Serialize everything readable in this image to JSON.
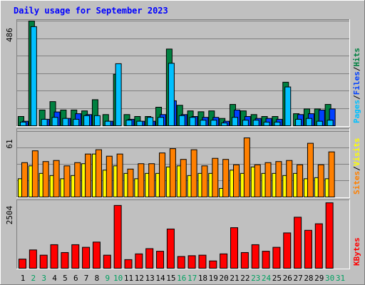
{
  "title": "Daily usage for September 2023",
  "colors": {
    "background": "#c0c0c0",
    "frame_light": "#ffffff",
    "frame_dark": "#808080",
    "title": "#0000ff",
    "pages": "#00c0ff",
    "hits": "#008040",
    "files": "#0040ff",
    "visits": "#ffff00",
    "sites": "#ff8000",
    "kbytes": "#ff0000",
    "bar_outline": "#000000",
    "weekend_day": "#00a060",
    "weekday_day": "#000000"
  },
  "chart_data": [
    {
      "type": "bar",
      "title": "Daily usage for September 2023",
      "axis_max_label": "486",
      "ylim": [
        0,
        486
      ],
      "categories": [
        "1",
        "2",
        "3",
        "4",
        "5",
        "6",
        "7",
        "8",
        "9",
        "10",
        "11",
        "12",
        "13",
        "14",
        "15",
        "16",
        "17",
        "18",
        "19",
        "20",
        "21",
        "22",
        "23",
        "24",
        "25",
        "26",
        "27",
        "28",
        "29",
        "30",
        "31"
      ],
      "legend": [
        {
          "label": "Pages",
          "color": "#00c0ff"
        },
        {
          "label": "Files",
          "color": "#0040ff"
        },
        {
          "label": "Hits",
          "color": "#008040"
        }
      ],
      "legend_separator": "/",
      "series": [
        {
          "name": "Hits",
          "values": [
            43,
            486,
            73,
            112,
            73,
            73,
            69,
            121,
            52,
            239,
            52,
            43,
            43,
            86,
            356,
            95,
            69,
            65,
            69,
            34,
            99,
            69,
            52,
            43,
            43,
            202,
            56,
            78,
            78,
            99,
            0
          ]
        },
        {
          "name": "Files",
          "values": [
            21,
            0,
            30,
            64,
            34,
            56,
            52,
            0,
            21,
            0,
            30,
            21,
            21,
            52,
            116,
            52,
            43,
            39,
            39,
            21,
            73,
            43,
            34,
            34,
            30,
            0,
            52,
            56,
            73,
            78,
            0
          ]
        },
        {
          "name": "Pages",
          "values": [
            17,
            460,
            30,
            39,
            34,
            30,
            47,
            47,
            21,
            288,
            26,
            21,
            39,
            39,
            290,
            47,
            39,
            26,
            26,
            13,
            39,
            26,
            26,
            17,
            17,
            180,
            30,
            34,
            21,
            26,
            0
          ]
        }
      ]
    },
    {
      "type": "bar",
      "axis_max_label": "61",
      "ylim": [
        0,
        61
      ],
      "categories": [
        "1",
        "2",
        "3",
        "4",
        "5",
        "6",
        "7",
        "8",
        "9",
        "10",
        "11",
        "12",
        "13",
        "14",
        "15",
        "16",
        "17",
        "18",
        "19",
        "20",
        "21",
        "22",
        "23",
        "24",
        "25",
        "26",
        "27",
        "28",
        "29",
        "30",
        "31"
      ],
      "legend": [
        {
          "label": "Sites",
          "color": "#ff8000"
        },
        {
          "label": "Visits",
          "color": "#ffff00"
        }
      ],
      "legend_separator": "/",
      "series": [
        {
          "name": "Visits",
          "values": [
            17,
            29,
            22,
            20,
            17,
            20,
            31,
            40,
            25,
            29,
            22,
            17,
            22,
            22,
            28,
            29,
            20,
            22,
            22,
            8,
            25,
            22,
            28,
            22,
            22,
            20,
            22,
            17,
            18,
            17,
            0
          ]
        },
        {
          "name": "Sites",
          "values": [
            32,
            43,
            33,
            34,
            29,
            32,
            40,
            44,
            38,
            40,
            26,
            31,
            31,
            41,
            45,
            35,
            44,
            29,
            36,
            35,
            30,
            55,
            30,
            32,
            33,
            34,
            30,
            50,
            30,
            42,
            0
          ]
        }
      ]
    },
    {
      "type": "bar",
      "axis_max_label": "2504",
      "ylim": [
        0,
        2504
      ],
      "categories": [
        "1",
        "2",
        "3",
        "4",
        "5",
        "6",
        "7",
        "8",
        "9",
        "10",
        "11",
        "12",
        "13",
        "14",
        "15",
        "16",
        "17",
        "18",
        "19",
        "20",
        "21",
        "22",
        "23",
        "24",
        "25",
        "26",
        "27",
        "28",
        "29",
        "30",
        "31"
      ],
      "legend": [
        {
          "label": "KBytes",
          "color": "#ff0000"
        }
      ],
      "series": [
        {
          "name": "KBytes",
          "values": [
            350,
            700,
            500,
            900,
            600,
            900,
            800,
            1000,
            500,
            2400,
            330,
            550,
            750,
            650,
            1500,
            450,
            480,
            500,
            280,
            550,
            1550,
            600,
            900,
            650,
            800,
            1350,
            1950,
            1450,
            1700,
            2500,
            0
          ]
        }
      ]
    }
  ],
  "x_axis": {
    "days": [
      "1",
      "2",
      "3",
      "4",
      "5",
      "6",
      "7",
      "8",
      "9",
      "10",
      "11",
      "12",
      "13",
      "14",
      "15",
      "16",
      "17",
      "18",
      "19",
      "20",
      "21",
      "22",
      "23",
      "24",
      "25",
      "26",
      "27",
      "28",
      "29",
      "30",
      "31"
    ],
    "weekend": [
      2,
      3,
      9,
      10,
      16,
      17,
      23,
      24,
      30,
      31
    ]
  }
}
